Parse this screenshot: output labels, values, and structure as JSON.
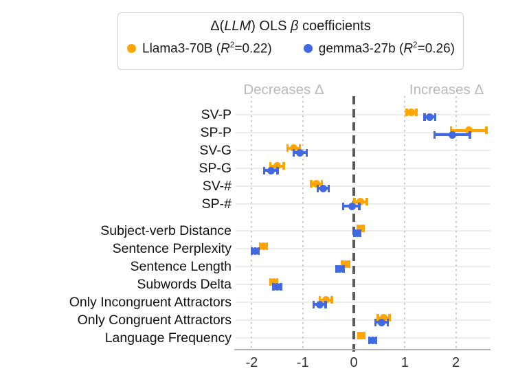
{
  "chart_data": {
    "type": "scatter",
    "subtype": "coefficient-dot-whisker",
    "title": "Δ(LLM) OLS β coefficients",
    "legend": {
      "position": "top",
      "title_parts": [
        {
          "t": "Δ(",
          "italic": false
        },
        {
          "t": "LLM",
          "italic": true
        },
        {
          "t": ") OLS ",
          "italic": false
        },
        {
          "t": "β",
          "italic": true
        },
        {
          "t": " coefficients",
          "italic": false
        }
      ]
    },
    "annotations": {
      "left": "Decreases Δ",
      "right": "Increases Δ"
    },
    "x_ticks": [
      -2,
      -1,
      0,
      1,
      2
    ],
    "xlim": [
      -2.3,
      2.7
    ],
    "zero_line": true,
    "grid": "vertical-dotted",
    "group_break_after": 6,
    "categories": [
      "SV-P",
      "SP-P",
      "SV-G",
      "SP-G",
      "SV-#",
      "SP-#",
      "Subject-verb Distance",
      "Sentence Perplexity",
      "Sentence Length",
      "Subwords Delta",
      "Only Incongruent Attractors",
      "Only Congruent Attractors",
      "Language Frequency"
    ],
    "series": [
      {
        "name": "Llama3-70B",
        "r2": "0.22",
        "color": "#FFA500",
        "values": [
          1.12,
          2.26,
          -1.18,
          -1.5,
          -0.73,
          0.13,
          0.13,
          -1.77,
          -0.16,
          -1.57,
          -0.55,
          0.58,
          0.15
        ],
        "ci_low": [
          1.03,
          1.9,
          -1.3,
          -1.64,
          -0.84,
          0.01,
          0.07,
          -1.84,
          -0.23,
          -1.64,
          -0.67,
          0.47,
          0.09
        ],
        "ci_high": [
          1.23,
          2.6,
          -1.05,
          -1.37,
          -0.62,
          0.26,
          0.19,
          -1.7,
          -0.09,
          -1.5,
          -0.43,
          0.7,
          0.21
        ]
      },
      {
        "name": "gemma3-27b",
        "r2": "0.26",
        "color": "#4169E1",
        "values": [
          1.49,
          1.93,
          -1.05,
          -1.62,
          -0.6,
          -0.04,
          0.07,
          -1.93,
          -0.27,
          -1.5,
          -0.67,
          0.55,
          0.37
        ],
        "ci_low": [
          1.38,
          1.58,
          -1.18,
          -1.76,
          -0.71,
          -0.21,
          0.01,
          -2.0,
          -0.34,
          -1.58,
          -0.79,
          0.42,
          0.3
        ],
        "ci_high": [
          1.6,
          2.28,
          -0.92,
          -1.49,
          -0.49,
          0.11,
          0.13,
          -1.86,
          -0.2,
          -1.42,
          -0.55,
          0.67,
          0.44
        ]
      }
    ]
  }
}
